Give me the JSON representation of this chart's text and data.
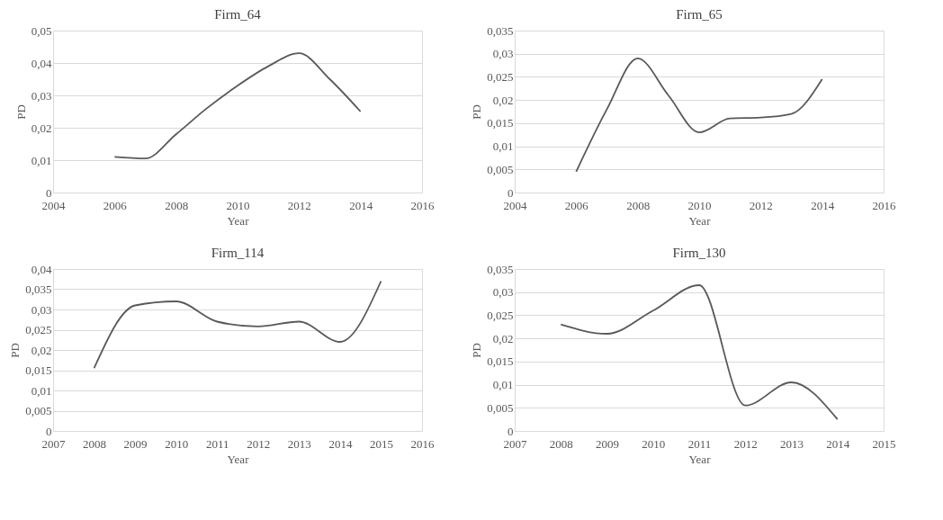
{
  "chart_data": [
    {
      "type": "line",
      "title": "Firm_64",
      "xlabel": "Year",
      "ylabel": "PD",
      "x": [
        2006,
        2007,
        2008,
        2009,
        2010,
        2011,
        2012,
        2013,
        2014
      ],
      "series": [
        {
          "color": "#595959",
          "values": [
            0.011,
            0.0105,
            0.018,
            0.026,
            0.033,
            0.039,
            0.043,
            0.035,
            0.025
          ]
        }
      ],
      "xlim": [
        2004,
        2016
      ],
      "xticks": [
        2004,
        2006,
        2008,
        2010,
        2012,
        2014,
        2016
      ],
      "ylim": [
        0,
        0.05
      ],
      "yticks": [
        0,
        {
          "value": 0.01,
          "label": "0,01"
        },
        {
          "value": 0.02,
          "label": "0,02"
        },
        {
          "value": 0.03,
          "label": "0,03"
        },
        {
          "value": 0.04,
          "label": "0,04"
        },
        {
          "value": 0.05,
          "label": "0,05"
        }
      ],
      "grid": "y",
      "marker": "none",
      "line_style": "solid"
    },
    {
      "type": "line",
      "title": "Firm_65",
      "xlabel": "Year",
      "ylabel": "PD",
      "x": [
        2006,
        2007,
        2008,
        2009,
        2010,
        2011,
        2012,
        2013,
        2014
      ],
      "series": [
        {
          "color": "#595959",
          "values": [
            0.0045,
            0.018,
            0.029,
            0.021,
            0.013,
            0.016,
            0.0162,
            0.017,
            0.0245
          ]
        }
      ],
      "xlim": [
        2004,
        2016
      ],
      "xticks": [
        2004,
        2006,
        2008,
        2010,
        2012,
        2014,
        2016
      ],
      "ylim": [
        0,
        0.035
      ],
      "yticks": [
        0,
        {
          "value": 0.005,
          "label": "0,005"
        },
        {
          "value": 0.01,
          "label": "0,01"
        },
        {
          "value": 0.015,
          "label": "0,015"
        },
        {
          "value": 0.02,
          "label": "0,02"
        },
        {
          "value": 0.025,
          "label": "0,025"
        },
        {
          "value": 0.03,
          "label": "0,03"
        },
        {
          "value": 0.035,
          "label": "0,035"
        }
      ],
      "grid": "y",
      "marker": "none",
      "line_style": "solid"
    },
    {
      "type": "line",
      "title": "Firm_114",
      "xlabel": "Year",
      "ylabel": "PD",
      "x": [
        2008,
        2009,
        2010,
        2011,
        2012,
        2013,
        2014,
        2015
      ],
      "series": [
        {
          "color": "#595959",
          "values": [
            0.0155,
            0.031,
            0.032,
            0.027,
            0.0258,
            0.027,
            0.022,
            0.037
          ]
        }
      ],
      "xlim": [
        2007,
        2016
      ],
      "xticks": [
        2007,
        2008,
        2009,
        2010,
        2011,
        2012,
        2013,
        2014,
        2015,
        2016
      ],
      "ylim": [
        0,
        0.04
      ],
      "yticks": [
        0,
        {
          "value": 0.005,
          "label": "0,005"
        },
        {
          "value": 0.01,
          "label": "0,01"
        },
        {
          "value": 0.015,
          "label": "0,015"
        },
        {
          "value": 0.02,
          "label": "0,02"
        },
        {
          "value": 0.025,
          "label": "0,025"
        },
        {
          "value": 0.03,
          "label": "0,03"
        },
        {
          "value": 0.035,
          "label": "0,035"
        },
        {
          "value": 0.04,
          "label": "0,04"
        }
      ],
      "grid": "y",
      "marker": "none",
      "line_style": "solid"
    },
    {
      "type": "line",
      "title": "Firm_130",
      "xlabel": "Year",
      "ylabel": "PD",
      "x": [
        2008,
        2009,
        2010,
        2011,
        2012,
        2013,
        2014
      ],
      "series": [
        {
          "color": "#595959",
          "values": [
            0.023,
            0.021,
            0.026,
            0.0315,
            0.0055,
            0.0105,
            0.0025
          ]
        }
      ],
      "xlim": [
        2007,
        2015
      ],
      "xticks": [
        2007,
        2008,
        2009,
        2010,
        2011,
        2012,
        2013,
        2014,
        2015
      ],
      "ylim": [
        0,
        0.035
      ],
      "yticks": [
        0,
        {
          "value": 0.005,
          "label": "0,005"
        },
        {
          "value": 0.01,
          "label": "0,01"
        },
        {
          "value": 0.015,
          "label": "0,015"
        },
        {
          "value": 0.02,
          "label": "0,02"
        },
        {
          "value": 0.025,
          "label": "0,025"
        },
        {
          "value": 0.03,
          "label": "0,03"
        },
        {
          "value": 0.035,
          "label": "0,035"
        }
      ],
      "grid": "y",
      "marker": "none",
      "line_style": "solid"
    }
  ]
}
